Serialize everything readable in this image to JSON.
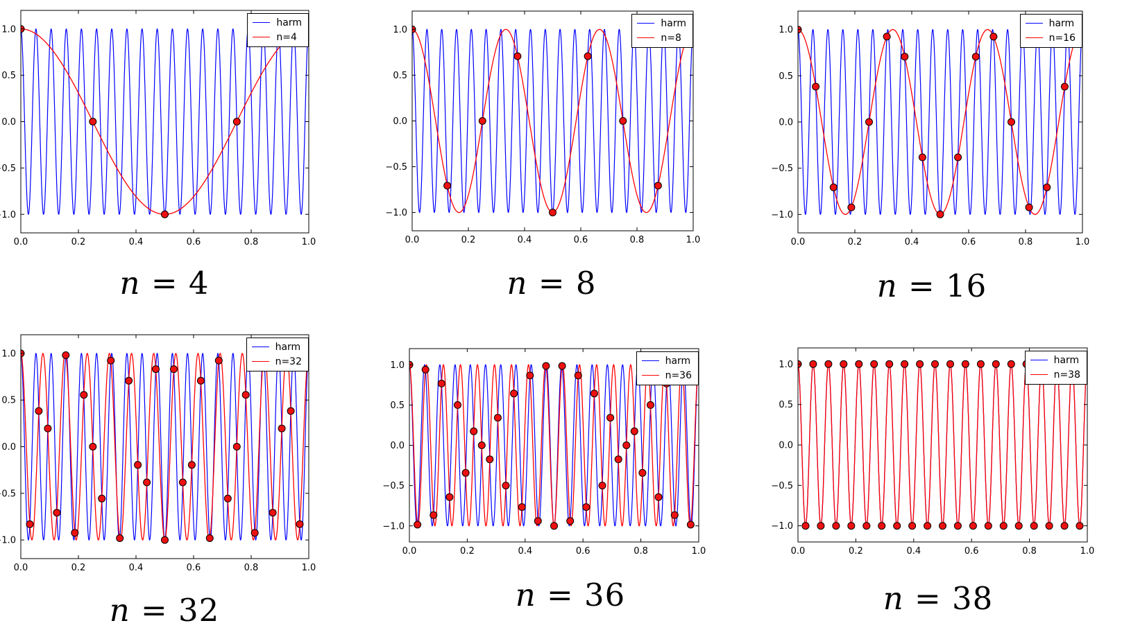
{
  "figure": {
    "background": "#ffffff",
    "description": "Aliasing of a sampled harmonic: blue harm curve cos(2*pi*19*x) with red aliased reconstructions for increasing sample counts n"
  },
  "style": {
    "harm_color": "#0000ff",
    "alias_color": "#ff0000",
    "marker_fill": "#ee1111",
    "marker_edge": "#000000",
    "axes_edge": "#000000",
    "tick_label_color": "#000000"
  },
  "chart_data": [
    {
      "type": "line",
      "caption_var": "n",
      "caption_rest": " = 4",
      "harm_frequency": 19,
      "alias_frequency": 1,
      "n_samples": 4,
      "x_range": [
        0,
        1
      ],
      "ylim": [
        -1.2,
        1.2
      ],
      "xtick_labels": [
        "0.0",
        "0.2",
        "0.4",
        "0.6",
        "0.8",
        "1.0"
      ],
      "ytick_labels": [
        "1.0",
        "0.5",
        "0.0",
        "−0.5",
        "−1.0"
      ],
      "legend": [
        {
          "label": "harm",
          "color": "#0000ff"
        },
        {
          "label": "n=4",
          "color": "#ff0000"
        }
      ],
      "series": [
        {
          "name": "harm",
          "color": "#0000ff",
          "function": "cos(2*pi*19*x)",
          "frequency": 19
        },
        {
          "name": "n=4",
          "color": "#ff0000",
          "function": "cos(2*pi*1*x)",
          "frequency": 1
        }
      ],
      "samples": {
        "count": 4,
        "x": "k/4, k=0..3",
        "y": "cos(2*pi*19*k/4)",
        "points": [
          [
            0.0,
            1.0
          ],
          [
            0.25,
            0.0
          ],
          [
            0.5,
            -1.0
          ],
          [
            0.75,
            0.0
          ]
        ]
      }
    },
    {
      "type": "line",
      "caption_var": "n",
      "caption_rest": " = 8",
      "harm_frequency": 19,
      "alias_frequency": 3,
      "n_samples": 8,
      "x_range": [
        0,
        1
      ],
      "ylim": [
        -1.2,
        1.2
      ],
      "xtick_labels": [
        "0.0",
        "0.2",
        "0.4",
        "0.6",
        "0.8",
        "1.0"
      ],
      "ytick_labels": [
        "1.0",
        "0.5",
        "0.0",
        "−0.5",
        "−1.0"
      ],
      "legend": [
        {
          "label": "harm",
          "color": "#0000ff"
        },
        {
          "label": "n=8",
          "color": "#ff0000"
        }
      ],
      "series": [
        {
          "name": "harm",
          "color": "#0000ff",
          "function": "cos(2*pi*19*x)",
          "frequency": 19
        },
        {
          "name": "n=8",
          "color": "#ff0000",
          "function": "cos(2*pi*3*x)",
          "frequency": 3
        }
      ],
      "samples": {
        "count": 8,
        "x": "k/8, k=0..7",
        "y": "cos(2*pi*19*k/8)"
      }
    },
    {
      "type": "line",
      "caption_var": "n",
      "caption_rest": " = 16",
      "harm_frequency": 19,
      "alias_frequency": 3,
      "n_samples": 16,
      "x_range": [
        0,
        1
      ],
      "ylim": [
        -1.2,
        1.2
      ],
      "xtick_labels": [
        "0.0",
        "0.2",
        "0.4",
        "0.6",
        "0.8",
        "1.0"
      ],
      "ytick_labels": [
        "1.0",
        "0.5",
        "0.0",
        "−0.5",
        "−1.0"
      ],
      "legend": [
        {
          "label": "harm",
          "color": "#0000ff"
        },
        {
          "label": "n=16",
          "color": "#ff0000"
        }
      ],
      "series": [
        {
          "name": "harm",
          "color": "#0000ff",
          "function": "cos(2*pi*19*x)",
          "frequency": 19
        },
        {
          "name": "n=16",
          "color": "#ff0000",
          "function": "cos(2*pi*3*x)",
          "frequency": 3
        }
      ],
      "samples": {
        "count": 16,
        "x": "k/16, k=0..15",
        "y": "cos(2*pi*19*k/16)"
      }
    },
    {
      "type": "line",
      "caption_var": "n",
      "caption_rest": " = 32",
      "harm_frequency": 19,
      "alias_frequency": 13,
      "n_samples": 32,
      "x_range": [
        0,
        1
      ],
      "ylim": [
        -1.2,
        1.2
      ],
      "xtick_labels": [
        "0.0",
        "0.2",
        "0.4",
        "0.6",
        "0.8",
        "1.0"
      ],
      "ytick_labels": [
        "1.0",
        "0.5",
        "0.0",
        "−0.5",
        "−1.0"
      ],
      "legend": [
        {
          "label": "harm",
          "color": "#0000ff"
        },
        {
          "label": "n=32",
          "color": "#ff0000"
        }
      ],
      "series": [
        {
          "name": "harm",
          "color": "#0000ff",
          "function": "cos(2*pi*19*x)",
          "frequency": 19
        },
        {
          "name": "n=32",
          "color": "#ff0000",
          "function": "cos(2*pi*13*x)",
          "frequency": 13
        }
      ],
      "samples": {
        "count": 32,
        "x": "k/32, k=0..31",
        "y": "cos(2*pi*19*k/32)"
      }
    },
    {
      "type": "line",
      "caption_var": "n",
      "caption_rest": " = 36",
      "harm_frequency": 19,
      "alias_frequency": 17,
      "n_samples": 36,
      "x_range": [
        0,
        1
      ],
      "ylim": [
        -1.2,
        1.2
      ],
      "xtick_labels": [
        "0.0",
        "0.2",
        "0.4",
        "0.6",
        "0.8",
        "1.0"
      ],
      "ytick_labels": [
        "1.0",
        "0.5",
        "0.0",
        "−0.5",
        "−1.0"
      ],
      "legend": [
        {
          "label": "harm",
          "color": "#0000ff"
        },
        {
          "label": "n=36",
          "color": "#ff0000"
        }
      ],
      "series": [
        {
          "name": "harm",
          "color": "#0000ff",
          "function": "cos(2*pi*19*x)",
          "frequency": 19
        },
        {
          "name": "n=36",
          "color": "#ff0000",
          "function": "cos(2*pi*17*x)",
          "frequency": 17
        }
      ],
      "samples": {
        "count": 36,
        "x": "k/36, k=0..35",
        "y": "cos(2*pi*19*k/36)"
      }
    },
    {
      "type": "line",
      "caption_var": "n",
      "caption_rest": " = 38",
      "harm_frequency": 19,
      "alias_frequency": 19,
      "n_samples": 38,
      "x_range": [
        0,
        1
      ],
      "ylim": [
        -1.2,
        1.2
      ],
      "xtick_labels": [
        "0.0",
        "0.2",
        "0.4",
        "0.6",
        "0.8",
        "1.0"
      ],
      "ytick_labels": [
        "1.0",
        "0.5",
        "0.0",
        "−0.5",
        "−1.0"
      ],
      "legend": [
        {
          "label": "harm",
          "color": "#0000ff"
        },
        {
          "label": "n=38",
          "color": "#ff0000"
        }
      ],
      "series": [
        {
          "name": "harm",
          "color": "#0000ff",
          "function": "cos(2*pi*19*x)",
          "frequency": 19
        },
        {
          "name": "n=38",
          "color": "#ff0000",
          "function": "cos(2*pi*19*x)",
          "frequency": 19
        }
      ],
      "samples": {
        "count": 38,
        "x": "k/38, k=0..37",
        "y": "cos(pi*k) = ±1 alternating"
      }
    }
  ]
}
